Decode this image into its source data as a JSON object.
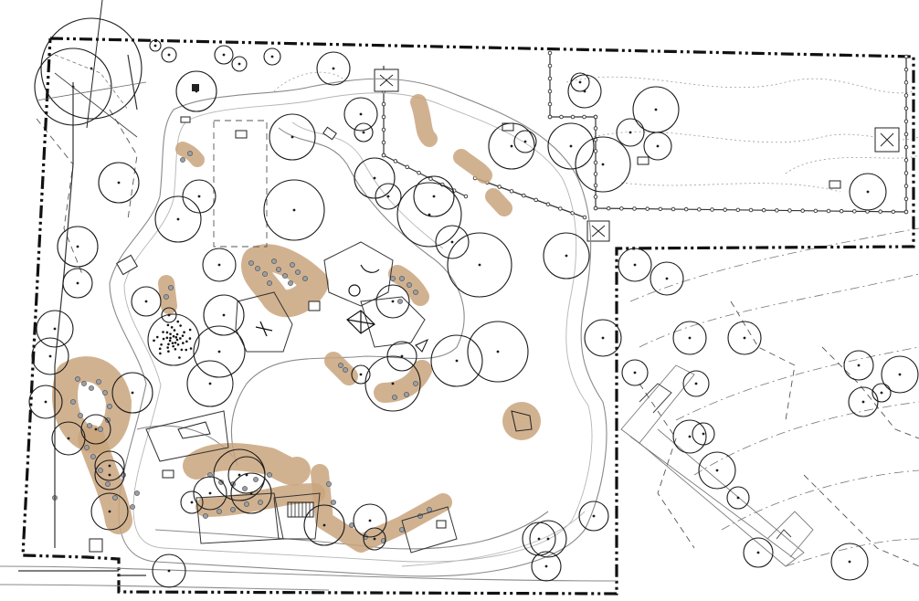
{
  "drawing": {
    "type": "landscape-site-plan",
    "background": "#ffffff",
    "colors": {
      "planting": "#c9a47c",
      "linework": "#1a1a1a",
      "paths": "#8a8a8a",
      "rocks": "#9aa0a8"
    },
    "features": [
      "property-boundary",
      "loop-path",
      "trees",
      "planting-beds",
      "play-areas",
      "fenced-enclosure",
      "ramp",
      "contours"
    ]
  }
}
